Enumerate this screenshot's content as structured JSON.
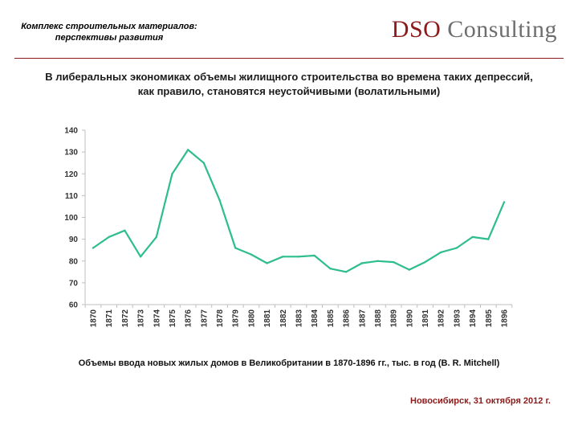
{
  "header": {
    "title_line1": "Комплекс строительных материалов:",
    "title_line2": "перспективы развития",
    "logo_part1": "DSO",
    "logo_part2": "Consulting"
  },
  "headline": {
    "line1": "В либеральных экономиках объемы жилищного строительства во времена таких депрессий,",
    "line2": "как правило, становятся неустойчивыми (волатильными)"
  },
  "caption": "Объемы ввода новых жилых домов в Великобритании в 1870-1896 гг., тыс. в год (B. R. Mitchell)",
  "footer": {
    "date": "Новосибирск, 31 октября 2012 г."
  },
  "colors": {
    "brand": "#8c1a1a",
    "logo_grey": "#6e6e6e",
    "line": "#2ebd8c",
    "axis": "#bfbfbf"
  },
  "chart_data": {
    "type": "line",
    "title": "",
    "xlabel": "",
    "ylabel": "",
    "ylim": [
      60,
      140
    ],
    "yticks": [
      60,
      70,
      80,
      90,
      100,
      110,
      120,
      130,
      140
    ],
    "grid": false,
    "categories": [
      "1870",
      "1871",
      "1872",
      "1873",
      "1874",
      "1875",
      "1876",
      "1877",
      "1878",
      "1879",
      "1880",
      "1881",
      "1882",
      "1883",
      "1884",
      "1885",
      "1886",
      "1887",
      "1888",
      "1889",
      "1890",
      "1891",
      "1892",
      "1893",
      "1894",
      "1895",
      "1896"
    ],
    "series": [
      {
        "name": "Объемы ввода новых жилых домов",
        "values": [
          86,
          91,
          94,
          82,
          91,
          120,
          131,
          125,
          108,
          86,
          83,
          79,
          82,
          82,
          82.5,
          76.5,
          75,
          79,
          80,
          79.5,
          76,
          79.5,
          84,
          86,
          91,
          90,
          107
        ]
      }
    ]
  }
}
